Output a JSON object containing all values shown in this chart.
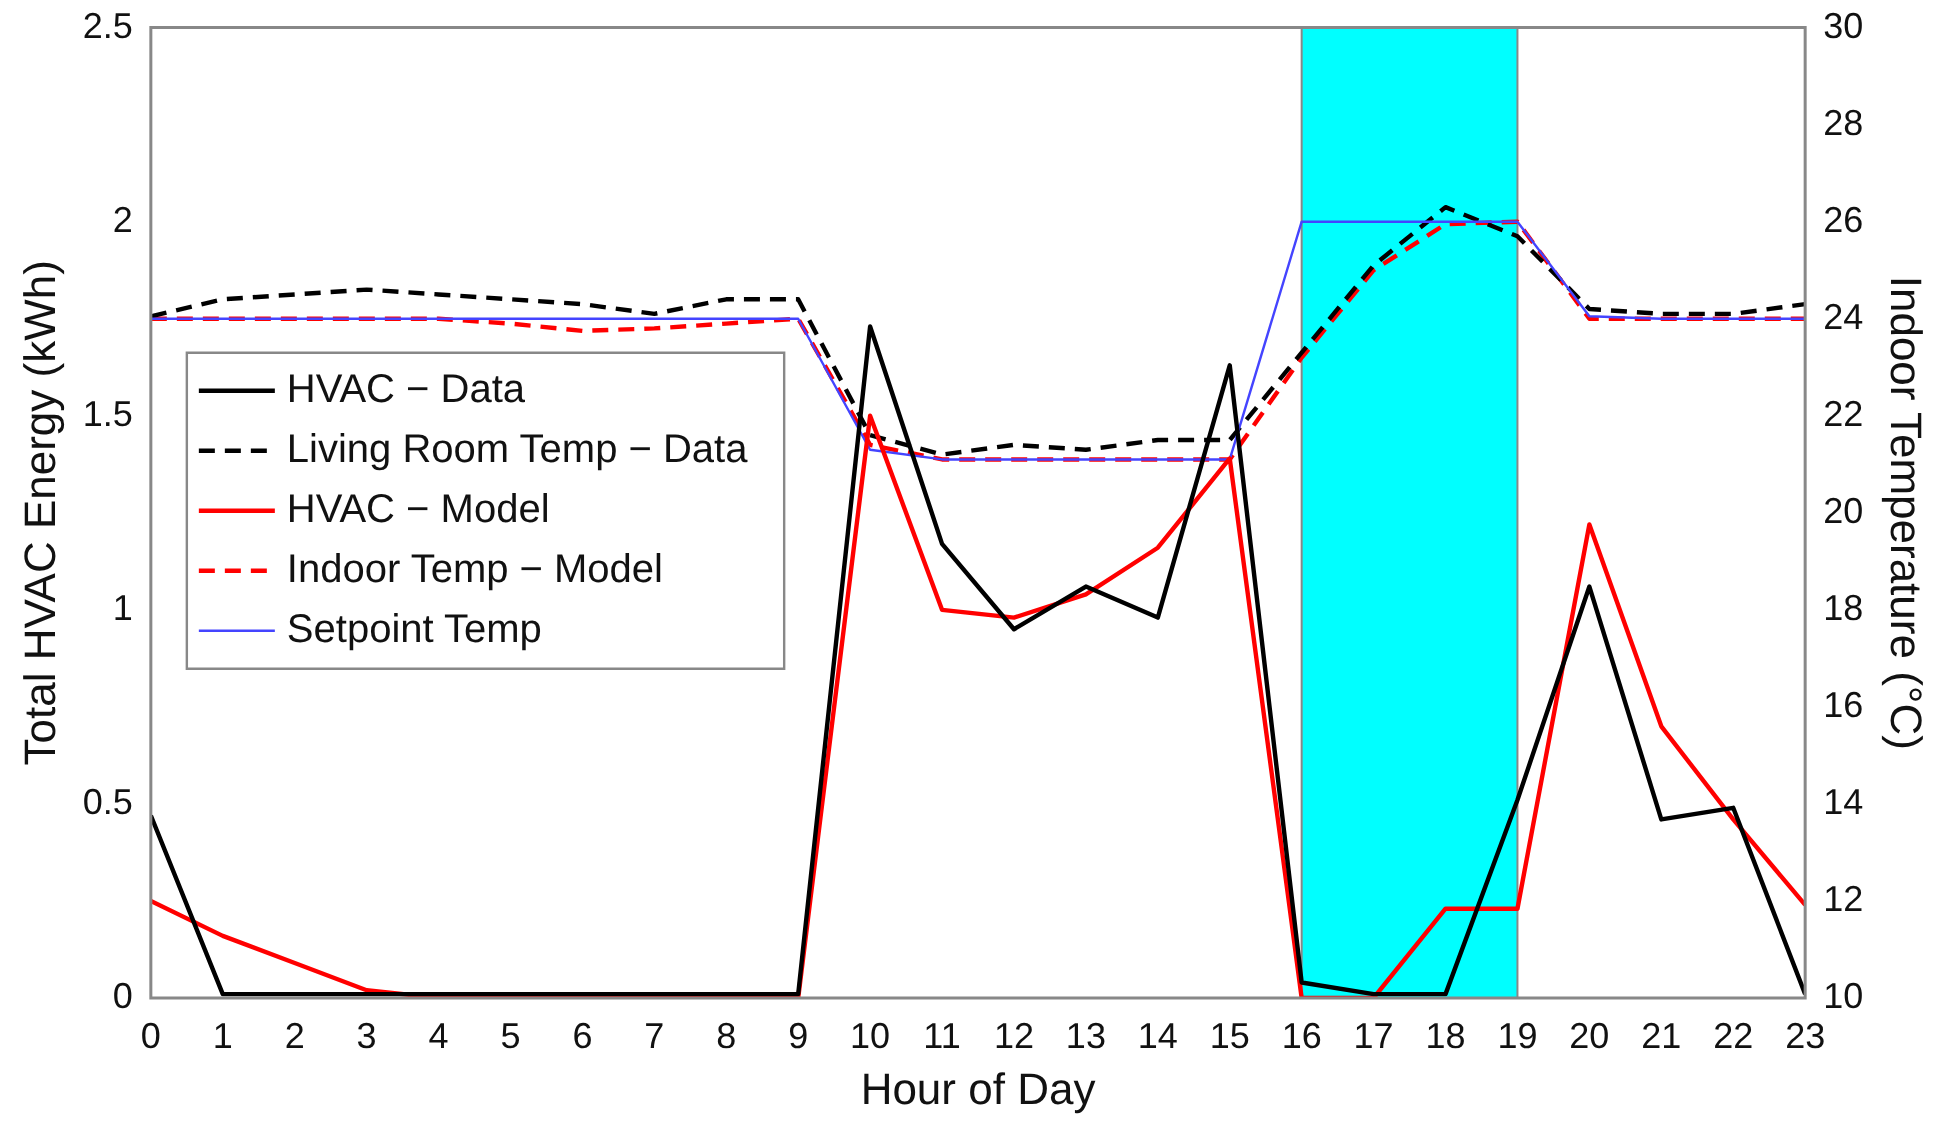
{
  "chart_data": {
    "type": "line",
    "xlabel": "Hour of Day",
    "ylabel": "Total HVAC Energy (kWh)",
    "y2label": "Indoor Temperature (°C)",
    "x": [
      0,
      1,
      2,
      3,
      4,
      5,
      6,
      7,
      8,
      9,
      10,
      11,
      12,
      13,
      14,
      15,
      16,
      17,
      18,
      19,
      20,
      21,
      22,
      23
    ],
    "xlim": [
      0,
      23
    ],
    "xticks": [
      0,
      1,
      2,
      3,
      4,
      5,
      6,
      7,
      8,
      9,
      10,
      11,
      12,
      13,
      14,
      15,
      16,
      17,
      18,
      19,
      20,
      21,
      22,
      23
    ],
    "ylim": [
      0,
      2.5
    ],
    "yticks": [
      0,
      0.5,
      1,
      1.5,
      2,
      2.5
    ],
    "y2lim": [
      10,
      30
    ],
    "y2ticks": [
      10,
      12,
      14,
      16,
      18,
      20,
      22,
      24,
      26,
      28,
      30
    ],
    "grid": false,
    "legend": "top left",
    "marker": "none",
    "bands": [
      {
        "axis": "x",
        "from": 16,
        "to": 19,
        "color": "#00ffff"
      }
    ],
    "series": [
      {
        "name": "HVAC − Data",
        "color": "#000000",
        "line_style": "solid",
        "values": [
          0.47,
          0.01,
          0.01,
          0.01,
          0.01,
          0.01,
          0.01,
          0.01,
          0.01,
          0.01,
          1.73,
          1.17,
          0.95,
          1.06,
          0.98,
          1.63,
          0.04,
          0.01,
          0.01,
          0.51,
          1.06,
          0.46,
          0.49,
          0.01
        ]
      },
      {
        "name": "Living Room Temp − Data",
        "color": "#000000",
        "line_style": "dashed",
        "axis": "y2",
        "values": [
          24.05,
          24.4,
          24.5,
          24.6,
          24.5,
          24.4,
          24.3,
          24.1,
          24.4,
          24.4,
          21.6,
          21.2,
          21.4,
          21.3,
          21.5,
          21.5,
          23.3,
          25.1,
          26.3,
          25.7,
          24.2,
          24.1,
          24.1,
          24.3
        ]
      },
      {
        "name": "HVAC − Model",
        "color": "#ff0000",
        "line_style": "solid",
        "values": [
          0.25,
          0.16,
          0.09,
          0.02,
          0,
          0,
          0,
          0,
          0,
          0,
          1.5,
          1.0,
          0.98,
          1.04,
          1.16,
          1.39,
          0,
          0,
          0.23,
          0.23,
          1.22,
          0.7,
          0.46,
          0.24
        ]
      },
      {
        "name": "Indoor Temp − Model",
        "color": "#ff0000",
        "line_style": "dashed",
        "axis": "y2",
        "values": [
          24.0,
          24.0,
          24.0,
          24.0,
          24.0,
          23.9,
          23.75,
          23.8,
          23.9,
          24.0,
          21.4,
          21.1,
          21.1,
          21.1,
          21.1,
          21.1,
          23.2,
          25.0,
          25.95,
          26.0,
          24.0,
          24.0,
          24.0,
          24.0
        ]
      },
      {
        "name": "Setpoint Temp",
        "color": "#4444ff",
        "line_style": "solid",
        "axis": "y2",
        "values": [
          24,
          24,
          24,
          24,
          24,
          24,
          24,
          24,
          24,
          24,
          21.3,
          21.1,
          21.1,
          21.1,
          21.1,
          21.1,
          26,
          26,
          26,
          26,
          24.05,
          24,
          24,
          24
        ]
      }
    ]
  }
}
